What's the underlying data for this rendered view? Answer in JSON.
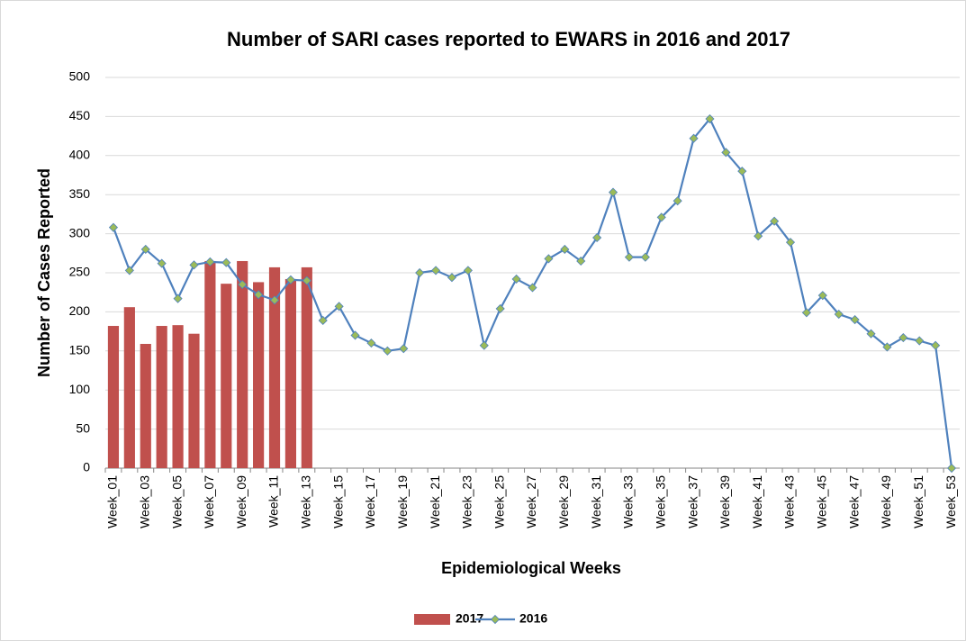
{
  "chart_data": {
    "type": "combo",
    "title": "Number of SARI cases reported to EWARS in 2016 and 2017",
    "xlabel": "Epidemiological Weeks",
    "ylabel": "Number of Cases Reported",
    "categories": [
      "Week_01",
      null,
      "Week_03",
      null,
      "Week_05",
      null,
      "Week_07",
      null,
      "Week_09",
      null,
      "Week_11",
      null,
      "Week_13",
      null,
      "Week_15",
      null,
      "Week_17",
      null,
      "Week_19",
      null,
      "Week_21",
      null,
      "Week_23",
      null,
      "Week_25",
      null,
      "Week_27",
      null,
      "Week_29",
      null,
      "Week_31",
      null,
      "Week_33",
      null,
      "Week_35",
      null,
      "Week_37",
      null,
      "Week_39",
      null,
      "Week_41",
      null,
      "Week_43",
      null,
      "Week_45",
      null,
      "Week_47",
      null,
      "Week_49",
      null,
      "Week_51",
      null,
      "Week_53"
    ],
    "series": [
      {
        "name": "2017",
        "type": "bar",
        "color": "#c0504d",
        "values": [
          182,
          206,
          159,
          182,
          183,
          172,
          265,
          236,
          265,
          238,
          257,
          242,
          257,
          null,
          null,
          null,
          null,
          null,
          null,
          null,
          null,
          null,
          null,
          null,
          null,
          null,
          null,
          null,
          null,
          null,
          null,
          null,
          null,
          null,
          null,
          null,
          null,
          null,
          null,
          null,
          null,
          null,
          null,
          null,
          null,
          null,
          null,
          null,
          null,
          null,
          null,
          null,
          null
        ]
      },
      {
        "name": "2016",
        "type": "line",
        "color": "#4f81bd",
        "marker_color": "#9bbb59",
        "values": [
          308,
          253,
          280,
          262,
          217,
          260,
          264,
          263,
          235,
          222,
          215,
          241,
          240,
          189,
          207,
          170,
          160,
          150,
          153,
          250,
          253,
          244,
          253,
          157,
          204,
          242,
          231,
          268,
          280,
          265,
          295,
          353,
          270,
          270,
          321,
          342,
          422,
          447,
          404,
          380,
          297,
          316,
          289,
          199,
          221,
          197,
          190,
          172,
          155,
          167,
          163,
          157,
          0
        ]
      }
    ],
    "ylim": [
      0,
      500
    ],
    "yticks": [
      0,
      50,
      100,
      150,
      200,
      250,
      300,
      350,
      400,
      450,
      500
    ],
    "grid": true,
    "legend": "bottom"
  }
}
